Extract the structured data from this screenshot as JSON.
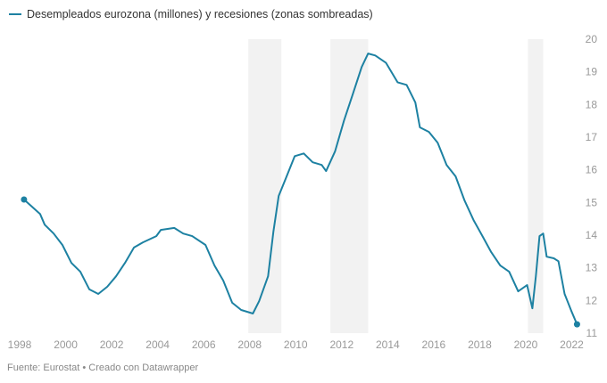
{
  "chart_data": {
    "type": "line",
    "title": "Desempleados eurozona (millones) y recesiones (zonas sombreadas)",
    "xlabel": "",
    "ylabel": "",
    "xlim": [
      1998,
      2022
    ],
    "ylim": [
      11,
      20
    ],
    "x_ticks": [
      "1998",
      "2000",
      "2002",
      "2004",
      "2006",
      "2008",
      "2010",
      "2012",
      "2014",
      "2016",
      "2018",
      "2020",
      "2022"
    ],
    "y_ticks": [
      "11",
      "12",
      "13",
      "14",
      "15",
      "16",
      "17",
      "18",
      "19",
      "20"
    ],
    "recessions": [
      [
        2007.94,
        2009.38
      ],
      [
        2011.51,
        2013.15
      ],
      [
        2020.1,
        2020.76
      ]
    ],
    "series": [
      {
        "name": "Desempleados eurozona (millones)",
        "color": "#1d81a2",
        "x": [
          1998.19,
          1998.89,
          1999.09,
          1999.48,
          1999.86,
          2000.25,
          2000.64,
          2001.03,
          2001.42,
          2001.81,
          2002.19,
          2002.58,
          2002.97,
          2003.36,
          2003.94,
          2004.14,
          2004.72,
          2005.11,
          2005.5,
          2006.08,
          2006.47,
          2006.85,
          2007.24,
          2007.63,
          2008.14,
          2008.41,
          2008.8,
          2009.03,
          2009.26,
          2009.57,
          2009.96,
          2010.35,
          2010.74,
          2011.13,
          2011.32,
          2011.71,
          2012.1,
          2012.49,
          2012.87,
          2013.15,
          2013.46,
          2013.92,
          2014.43,
          2014.82,
          2015.2,
          2015.4,
          2015.79,
          2016.17,
          2016.56,
          2016.95,
          2017.34,
          2017.73,
          2018.12,
          2018.5,
          2018.89,
          2019.28,
          2019.67,
          2020.06,
          2020.29,
          2020.44,
          2020.6,
          2020.76,
          2020.91,
          2021.22,
          2021.42,
          2021.69,
          2022.0,
          2022.23
        ],
        "values": [
          15.09,
          14.65,
          14.32,
          14.05,
          13.7,
          13.15,
          12.88,
          12.34,
          12.2,
          12.42,
          12.74,
          13.15,
          13.62,
          13.78,
          13.97,
          14.16,
          14.22,
          14.05,
          13.97,
          13.7,
          13.07,
          12.61,
          11.93,
          11.71,
          11.6,
          11.98,
          12.74,
          14.11,
          15.2,
          15.74,
          16.42,
          16.5,
          16.23,
          16.15,
          15.96,
          16.56,
          17.51,
          18.33,
          19.15,
          19.56,
          19.5,
          19.28,
          18.68,
          18.6,
          18.06,
          17.3,
          17.16,
          16.83,
          16.15,
          15.8,
          15.06,
          14.46,
          13.97,
          13.48,
          13.07,
          12.88,
          12.28,
          12.47,
          11.76,
          12.74,
          13.97,
          14.05,
          13.34,
          13.29,
          13.2,
          12.2,
          11.65,
          11.27
        ]
      }
    ],
    "endpoints_marked": true
  },
  "footer": "Fuente: Eurostat • Creado con Datawrapper"
}
